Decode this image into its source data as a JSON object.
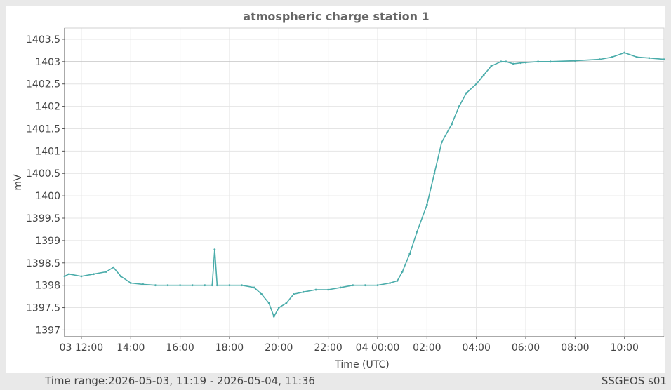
{
  "footer": {
    "time_range_label": "Time range:",
    "time_range_value": "2026-05-03, 11:19 - 2026-05-04, 11:36",
    "station_code": "SSGEOS s01"
  },
  "colors": {
    "series": "#4aacaa",
    "grid": "#e4e4e4",
    "reference_line": "#bdbdbd",
    "axis": "#555555",
    "text": "#444444",
    "title": "#666666"
  },
  "chart_data": {
    "type": "line",
    "title": "atmospheric charge station 1",
    "xlabel": "Time (UTC)",
    "ylabel": "mV",
    "xlim_hours": [
      11.32,
      35.6
    ],
    "ylim": [
      1396.85,
      1403.75
    ],
    "grid": true,
    "reference_lines_y": [
      1398,
      1403
    ],
    "x_ticks": [
      {
        "hour": 12,
        "label": "03 12:00"
      },
      {
        "hour": 14,
        "label": "14:00"
      },
      {
        "hour": 16,
        "label": "16:00"
      },
      {
        "hour": 18,
        "label": "18:00"
      },
      {
        "hour": 20,
        "label": "20:00"
      },
      {
        "hour": 22,
        "label": "22:00"
      },
      {
        "hour": 24,
        "label": "04 00:00"
      },
      {
        "hour": 26,
        "label": "02:00"
      },
      {
        "hour": 28,
        "label": "04:00"
      },
      {
        "hour": 30,
        "label": "06:00"
      },
      {
        "hour": 32,
        "label": "08:00"
      },
      {
        "hour": 34,
        "label": "10:00"
      }
    ],
    "y_ticks": [
      {
        "value": 1397,
        "label": "1397"
      },
      {
        "value": 1397.5,
        "label": "1397.5"
      },
      {
        "value": 1398,
        "label": "1398"
      },
      {
        "value": 1398.5,
        "label": "1398.5"
      },
      {
        "value": 1399,
        "label": "1399"
      },
      {
        "value": 1399.5,
        "label": "1399.5"
      },
      {
        "value": 1400,
        "label": "1400"
      },
      {
        "value": 1400.5,
        "label": "1400.5"
      },
      {
        "value": 1401,
        "label": "1401"
      },
      {
        "value": 1401.5,
        "label": "1401.5"
      },
      {
        "value": 1402,
        "label": "1402"
      },
      {
        "value": 1402.5,
        "label": "1402.5"
      },
      {
        "value": 1403,
        "label": "1403"
      },
      {
        "value": 1403.5,
        "label": "1403.5"
      }
    ],
    "series": [
      {
        "x_hours": [
          11.32,
          11.5,
          12.0,
          12.5,
          13.0,
          13.3,
          13.6,
          14.0,
          14.5,
          15.0,
          15.5,
          16.0,
          16.5,
          17.0,
          17.3,
          17.4,
          17.5,
          18.0,
          18.5,
          19.0,
          19.3,
          19.6,
          19.8,
          20.0,
          20.3,
          20.6,
          21.0,
          21.5,
          22.0,
          22.5,
          23.0,
          23.5,
          24.0,
          24.5,
          24.8,
          25.0,
          25.3,
          25.6,
          26.0,
          26.3,
          26.6,
          27.0,
          27.3,
          27.6,
          28.0,
          28.3,
          28.6,
          29.0,
          29.2,
          29.5,
          29.8,
          30.0,
          30.5,
          31.0,
          32.0,
          33.0,
          33.5,
          34.0,
          34.5,
          35.0,
          35.6
        ],
        "values": [
          1398.2,
          1398.25,
          1398.2,
          1398.25,
          1398.3,
          1398.4,
          1398.2,
          1398.05,
          1398.02,
          1398.0,
          1398.0,
          1398.0,
          1398.0,
          1398.0,
          1398.0,
          1398.8,
          1398.0,
          1398.0,
          1398.0,
          1397.95,
          1397.8,
          1397.6,
          1397.3,
          1397.5,
          1397.6,
          1397.8,
          1397.85,
          1397.9,
          1397.9,
          1397.95,
          1398.0,
          1398.0,
          1398.0,
          1398.05,
          1398.1,
          1398.3,
          1398.7,
          1399.2,
          1399.8,
          1400.5,
          1401.2,
          1401.6,
          1402.0,
          1402.3,
          1402.5,
          1402.7,
          1402.9,
          1403.0,
          1403.0,
          1402.95,
          1402.97,
          1402.98,
          1403.0,
          1403.0,
          1403.02,
          1403.05,
          1403.1,
          1403.2,
          1403.1,
          1403.08,
          1403.05
        ]
      }
    ]
  }
}
